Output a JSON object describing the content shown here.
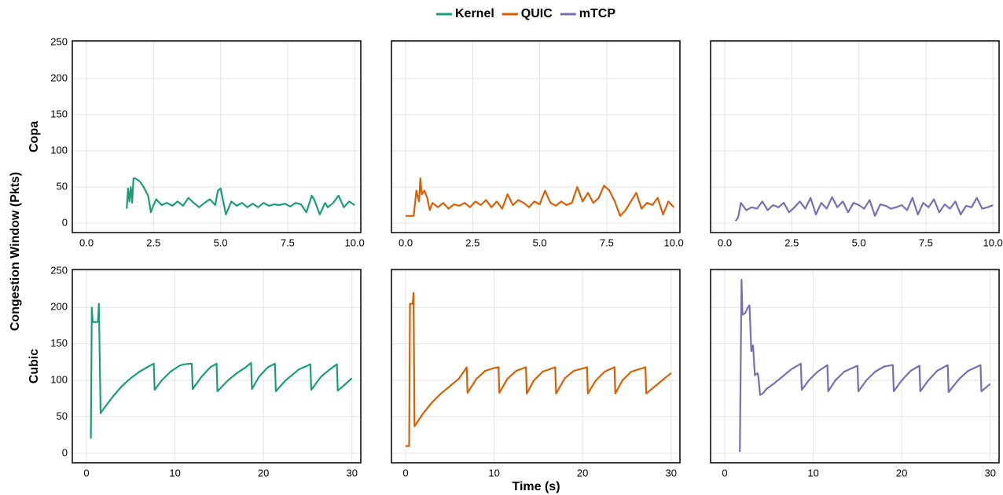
{
  "chart_data": {
    "type": "line",
    "xlabel": "Time (s)",
    "ylabel": "Congestion Window (Pkts)",
    "ylim": [
      -13,
      252
    ],
    "yticks": [
      0,
      50,
      100,
      150,
      200,
      250
    ],
    "grid": true,
    "legend": "top",
    "rows": [
      {
        "label": "Copa",
        "xlim": [
          -0.53,
          10.23
        ],
        "xticks": [
          {
            "value": 0,
            "label": "0.0"
          },
          {
            "value": 2.5,
            "label": "2.5"
          },
          {
            "value": 5,
            "label": "5.0"
          },
          {
            "value": 7.5,
            "label": "7.5"
          },
          {
            "value": 10,
            "label": "10.0"
          }
        ],
        "series": [
          {
            "name": "Kernel",
            "color": "#1b9e77",
            "x": [
              1.5,
              1.55,
              1.6,
              1.65,
              1.7,
              1.75,
              1.8,
              1.9,
              2.0,
              2.1,
              2.2,
              2.3,
              2.4,
              2.5,
              2.6,
              2.8,
              3.0,
              3.2,
              3.4,
              3.6,
              3.8,
              4.0,
              4.2,
              4.4,
              4.6,
              4.8,
              4.9,
              5.0,
              5.2,
              5.4,
              5.6,
              5.8,
              6.0,
              6.2,
              6.4,
              6.6,
              6.8,
              7.0,
              7.2,
              7.4,
              7.6,
              7.8,
              8.0,
              8.2,
              8.4,
              8.5,
              8.7,
              8.9,
              9.0,
              9.2,
              9.4,
              9.6,
              9.8,
              10.0
            ],
            "values": [
              20,
              48,
              30,
              50,
              28,
              62,
              62,
              60,
              57,
              52,
              45,
              38,
              15,
              25,
              33,
              25,
              28,
              24,
              30,
              24,
              35,
              28,
              22,
              28,
              33,
              25,
              45,
              48,
              12,
              30,
              24,
              28,
              22,
              27,
              22,
              28,
              24,
              26,
              25,
              27,
              23,
              28,
              26,
              15,
              38,
              32,
              12,
              28,
              22,
              28,
              38,
              22,
              30,
              25
            ]
          },
          {
            "name": "QUIC",
            "color": "#d95f02",
            "x": [
              0,
              0.2,
              0.3,
              0.4,
              0.5,
              0.55,
              0.6,
              0.7,
              0.8,
              0.9,
              1.0,
              1.2,
              1.4,
              1.6,
              1.8,
              2.0,
              2.2,
              2.4,
              2.6,
              2.8,
              3.0,
              3.2,
              3.4,
              3.6,
              3.8,
              4.0,
              4.2,
              4.4,
              4.6,
              4.8,
              5.0,
              5.2,
              5.4,
              5.6,
              5.8,
              6.0,
              6.2,
              6.4,
              6.6,
              6.8,
              7.0,
              7.2,
              7.4,
              7.6,
              7.8,
              8.0,
              8.2,
              8.4,
              8.6,
              8.8,
              9.0,
              9.2,
              9.4,
              9.6,
              9.8,
              10.0
            ],
            "values": [
              10,
              10,
              10,
              45,
              30,
              62,
              40,
              45,
              35,
              18,
              28,
              22,
              28,
              20,
              26,
              24,
              28,
              22,
              30,
              25,
              32,
              22,
              30,
              20,
              40,
              25,
              32,
              28,
              22,
              30,
              26,
              45,
              28,
              24,
              30,
              25,
              28,
              50,
              30,
              42,
              28,
              35,
              52,
              45,
              30,
              10,
              18,
              30,
              42,
              20,
              28,
              25,
              35,
              12,
              30,
              22
            ]
          },
          {
            "name": "mTCP",
            "color": "#7570b3",
            "x": [
              0.4,
              0.5,
              0.6,
              0.8,
              1.0,
              1.2,
              1.4,
              1.6,
              1.8,
              2.0,
              2.2,
              2.4,
              2.6,
              2.8,
              3.0,
              3.2,
              3.4,
              3.6,
              3.8,
              4.0,
              4.2,
              4.4,
              4.6,
              4.8,
              5.0,
              5.2,
              5.4,
              5.6,
              5.8,
              6.0,
              6.2,
              6.4,
              6.6,
              6.8,
              7.0,
              7.2,
              7.4,
              7.6,
              7.8,
              8.0,
              8.2,
              8.4,
              8.6,
              8.8,
              9.0,
              9.2,
              9.4,
              9.6,
              9.8,
              10.0
            ],
            "values": [
              3,
              8,
              28,
              18,
              22,
              20,
              30,
              18,
              25,
              22,
              28,
              15,
              22,
              30,
              20,
              35,
              12,
              28,
              20,
              36,
              22,
              30,
              15,
              28,
              25,
              20,
              32,
              10,
              26,
              24,
              20,
              22,
              25,
              18,
              35,
              12,
              28,
              22,
              33,
              15,
              26,
              20,
              30,
              12,
              24,
              22,
              35,
              20,
              22,
              25
            ]
          }
        ]
      },
      {
        "label": "Cubic",
        "xlim": [
          -1.6,
          31
        ],
        "xticks": [
          0,
          10,
          20,
          30
        ],
        "series": [
          {
            "color": "#1b9e77",
            "x": [
              0.5,
              0.6,
              0.7,
              1.0,
              1.3,
              1.4,
              1.6,
              2,
              3,
              4,
              5,
              6,
              7,
              7.6,
              7.7,
              8.5,
              9.5,
              10.5,
              11.0,
              11.9,
              12.0,
              13,
              14,
              14.7,
              14.8,
              16,
              17,
              18,
              18.6,
              18.7,
              19.5,
              20.5,
              21.3,
              21.4,
              22.5,
              24,
              25.3,
              25.4,
              26.5,
              27.5,
              28.3,
              28.4,
              29,
              30
            ],
            "values": [
              20,
              200,
              180,
              180,
              180,
              205,
              55,
              62,
              78,
              92,
              103,
              112,
              119,
              123,
              87,
              100,
              112,
              120,
              122,
              123,
              88,
              105,
              118,
              123,
              85,
              100,
              110,
              118,
              124,
              88,
              105,
              118,
              123,
              85,
              100,
              115,
              122,
              87,
              105,
              115,
              122,
              86,
              92,
              103
            ]
          },
          {
            "color": "#d95f02",
            "x": [
              0,
              0.4,
              0.5,
              0.8,
              0.9,
              1.0,
              2,
              3,
              4,
              5,
              6,
              6.9,
              7.0,
              8,
              9,
              10,
              10.5,
              10.6,
              11.5,
              12.5,
              13.6,
              13.7,
              14.5,
              15.5,
              16.9,
              17.0,
              18,
              19,
              20.5,
              20.6,
              21.5,
              22.5,
              23.6,
              23.7,
              24.5,
              25.5,
              27.1,
              27.2,
              28,
              30
            ],
            "values": [
              10,
              10,
              205,
              205,
              220,
              37,
              55,
              70,
              82,
              92,
              102,
              118,
              83,
              102,
              113,
              117,
              118,
              83,
              102,
              113,
              118,
              82,
              100,
              112,
              118,
              82,
              103,
              113,
              118,
              82,
              100,
              112,
              118,
              82,
              100,
              112,
              118,
              82,
              90,
              110
            ]
          },
          {
            "color": "#7570b3",
            "x": [
              1.7,
              1.9,
              2.0,
              2.3,
              2.6,
              2.8,
              3.0,
              3.2,
              3.4,
              3.7,
              3.8,
              4.0,
              4.3,
              4.7,
              5.5,
              6.5,
              7.5,
              8.6,
              8.7,
              9.5,
              10.5,
              11.6,
              11.7,
              12.5,
              13.5,
              15,
              15.1,
              16,
              17,
              18,
              19,
              19.1,
              20,
              21,
              22,
              22.1,
              23,
              24,
              25.2,
              25.3,
              26.5,
              27.5,
              28.9,
              29,
              30
            ],
            "values": [
              2,
              238,
              190,
              192,
              200,
              203,
              140,
              148,
              107,
              110,
              105,
              80,
              82,
              88,
              95,
              105,
              115,
              123,
              87,
              100,
              112,
              121,
              85,
              100,
              112,
              120,
              85,
              100,
              112,
              119,
              121,
              85,
              100,
              113,
              120,
              85,
              100,
              113,
              121,
              84,
              102,
              113,
              121,
              85,
              95
            ]
          }
        ]
      }
    ]
  }
}
